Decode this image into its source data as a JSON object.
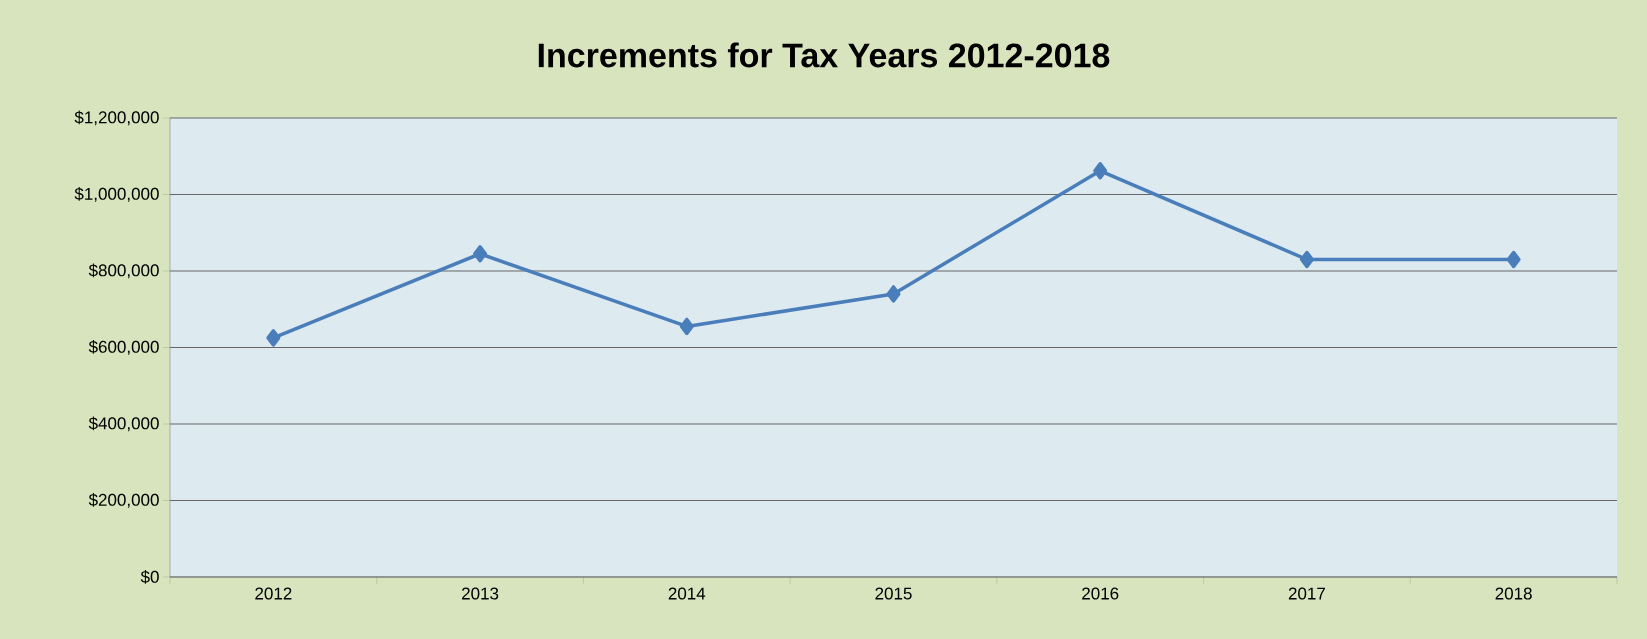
{
  "chart_data": {
    "type": "line",
    "title": "Increments for Tax Years 2012-2018",
    "categories": [
      "2012",
      "2013",
      "2014",
      "2015",
      "2016",
      "2017",
      "2018"
    ],
    "series": [
      {
        "color": "#4a7ebb",
        "values": [
          625000,
          845000,
          655000,
          740000,
          1062000,
          830000,
          830000
        ]
      }
    ],
    "ylim": [
      0,
      1200000
    ],
    "yticks": [
      {
        "value": 0,
        "label": "$0"
      },
      {
        "value": 200000,
        "label": "$200,000"
      },
      {
        "value": 400000,
        "label": "$400,000"
      },
      {
        "value": 600000,
        "label": "$600,000"
      },
      {
        "value": 800000,
        "label": "$800,000"
      },
      {
        "value": 1000000,
        "label": "$1,000,000"
      },
      {
        "value": 1200000,
        "label": "$1,200,000"
      }
    ],
    "grid": "y",
    "marker": "diamond",
    "line_style": "solid"
  }
}
